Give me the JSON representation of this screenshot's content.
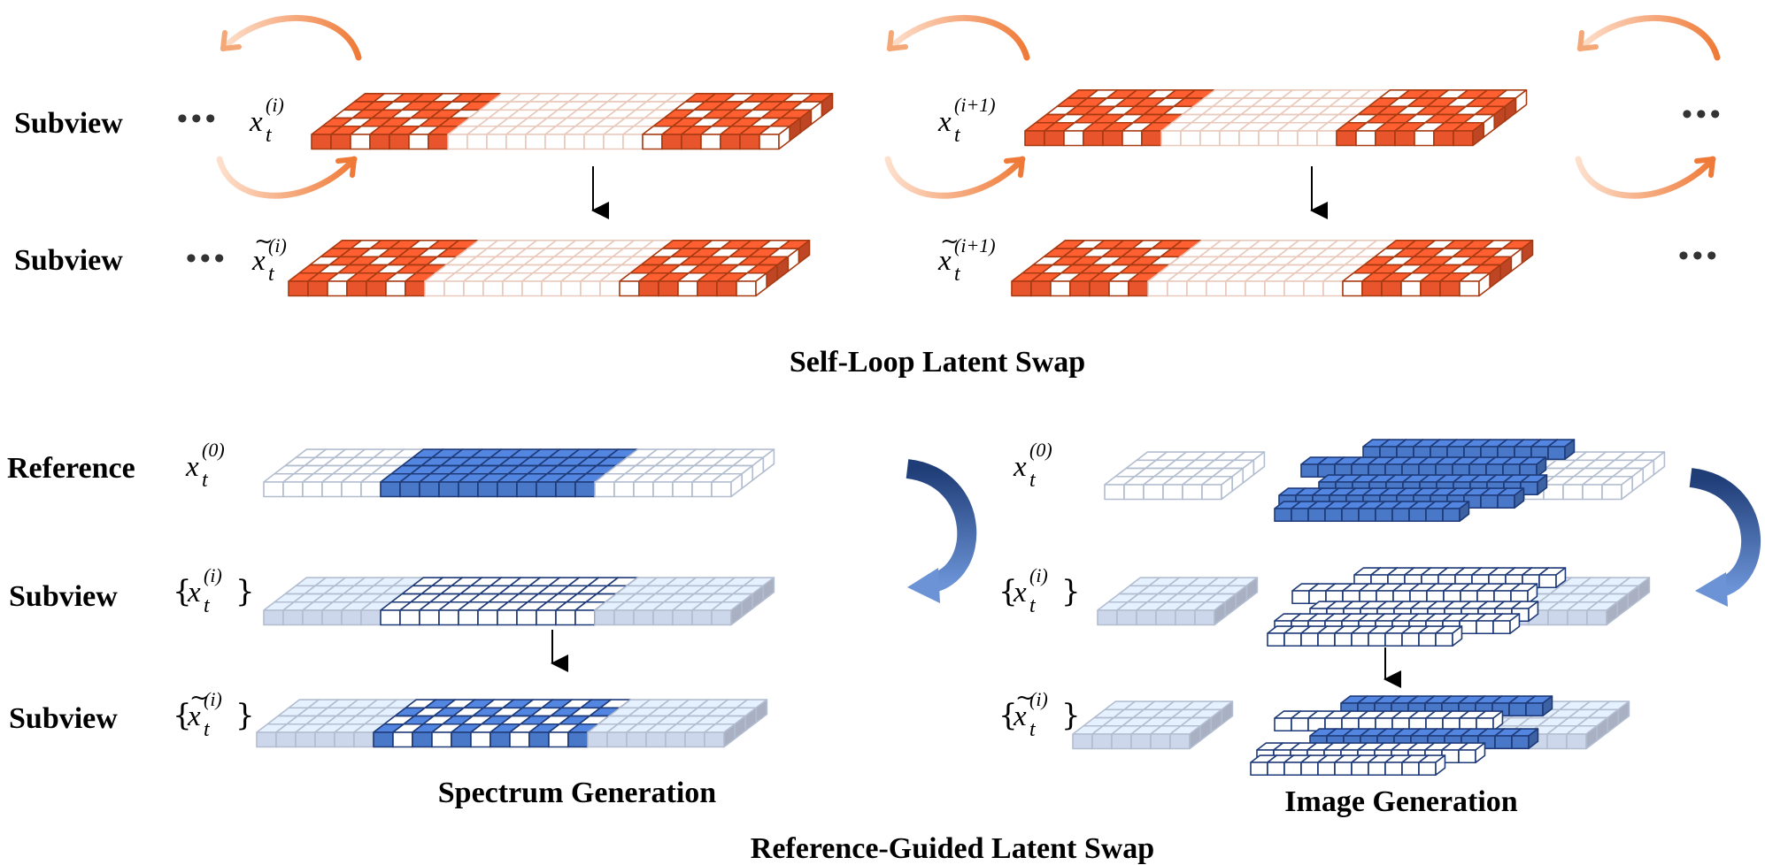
{
  "self_loop": {
    "title": "Self-Loop Latent Swap",
    "row_top_label": "Subview",
    "row_bottom_label": "Subview",
    "left_var": "x",
    "left_sub": "t",
    "left_sup": "(i)",
    "right_var": "x",
    "right_sub": "t",
    "right_sup": "(i+1)"
  },
  "reference_guided": {
    "title": "Reference-Guided Latent Swap",
    "row_labels": [
      "Reference",
      "Subview",
      "Subview"
    ],
    "ref_sup": "(0)",
    "sub_sup": "(i)",
    "var": "x",
    "sub": "t",
    "spectrum_title": "Spectrum Generation",
    "image_title": "Image Generation"
  },
  "ellipsis": "•••",
  "colors": {
    "orange_fill": "#e8552c",
    "orange_stroke": "#a83a12",
    "orange_faint": "#e9c9bb",
    "blue_fill": "#4a78c8",
    "blue_stroke": "#1e3a78",
    "blue_faint_stroke": "#b3bdd0",
    "blue_faint_fill": "#cdd7eb",
    "arrow_orange": "#f08a4b",
    "arrow_blue": "#2d5497"
  }
}
